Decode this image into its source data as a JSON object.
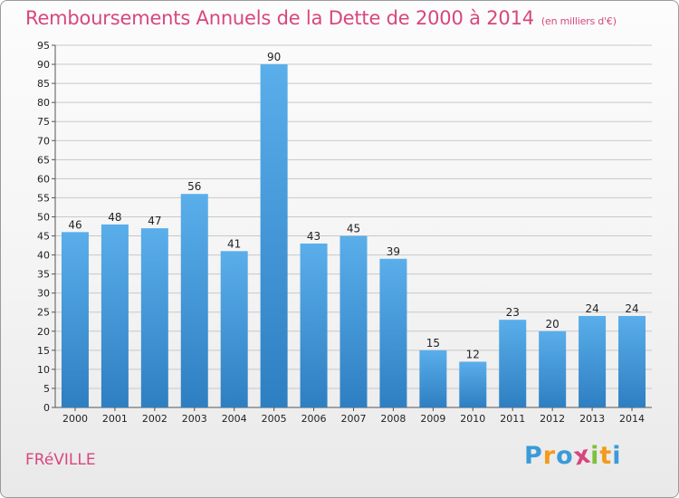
{
  "header": {
    "title": "Remboursements Annuels de la Dette de 2000 à 2014",
    "unit": "(en milliers d'€)"
  },
  "footer": {
    "town": "FRéVILLE",
    "brand": "Proxiti",
    "brand_letters": [
      {
        "char": "P",
        "color": "#3b9ad9"
      },
      {
        "char": "r",
        "color": "#f39a1c"
      },
      {
        "char": "o",
        "color": "#3b9ad9"
      },
      {
        "char": "x",
        "color": "#d7477e"
      },
      {
        "char": "i",
        "color": "#7fbf3f"
      },
      {
        "char": "t",
        "color": "#f39a1c"
      },
      {
        "char": "i",
        "color": "#3b9ad9"
      }
    ]
  },
  "colors": {
    "bar_top": "#5aaeea",
    "bar_bottom": "#2e7fc2",
    "grid": "#c8c8c8",
    "axis": "#555555"
  },
  "chart_data": {
    "type": "bar",
    "title": "Remboursements Annuels de la Dette de 2000 à 2014",
    "unit": "(en milliers d'€)",
    "categories": [
      "2000",
      "2001",
      "2002",
      "2003",
      "2004",
      "2005",
      "2006",
      "2007",
      "2008",
      "2009",
      "2010",
      "2011",
      "2012",
      "2013",
      "2014"
    ],
    "values": [
      46,
      48,
      47,
      56,
      41,
      90,
      43,
      45,
      39,
      15,
      12,
      23,
      20,
      24,
      24
    ],
    "ylim": [
      0,
      95
    ],
    "ytick_step": 5,
    "grid": true
  }
}
